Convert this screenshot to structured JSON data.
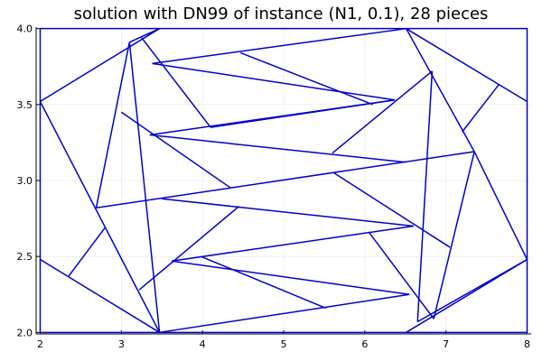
{
  "chart_data": {
    "type": "line",
    "title": "solution with DN99 of instance (N1, 0.1), 28 pieces",
    "xlabel": "",
    "ylabel": "",
    "xlim": [
      1.95,
      8.05
    ],
    "ylim": [
      1.99,
      4.01
    ],
    "x_ticks": [
      2,
      3,
      4,
      5,
      6,
      7,
      8
    ],
    "y_ticks": [
      2.0,
      2.5,
      3.0,
      3.5,
      4.0
    ],
    "x_tick_labels": [
      "2",
      "3",
      "4",
      "5",
      "6",
      "7",
      "8"
    ],
    "y_tick_labels": [
      "2.0",
      "2.5",
      "3.0",
      "3.5",
      "4.0"
    ],
    "grid": true,
    "legend": "none",
    "line_color": "#0000cd",
    "boundary": [
      [
        2,
        2
      ],
      [
        8,
        2
      ],
      [
        8,
        4
      ],
      [
        2,
        4
      ],
      [
        2,
        2
      ]
    ],
    "segments": [
      [
        [
          2,
          3.52
        ],
        [
          3.47,
          4
        ]
      ],
      [
        [
          2,
          3.52
        ],
        [
          3.47,
          2
        ]
      ],
      [
        [
          2,
          2.48
        ],
        [
          3.47,
          2
        ]
      ],
      [
        [
          2.35,
          2.37
        ],
        [
          2.8,
          2.69
        ]
      ],
      [
        [
          2.69,
          2.82
        ],
        [
          3.1,
          3.91
        ]
      ],
      [
        [
          3.1,
          3.91
        ],
        [
          3.47,
          2
        ]
      ],
      [
        [
          3.1,
          3.91
        ],
        [
          3.47,
          4
        ]
      ],
      [
        [
          3.25,
          3.94
        ],
        [
          4.1,
          3.35
        ]
      ],
      [
        [
          3.22,
          2.28
        ],
        [
          4.45,
          2.83
        ]
      ],
      [
        [
          3.47,
          2
        ],
        [
          6.55,
          2.25
        ]
      ],
      [
        [
          2.69,
          2.82
        ],
        [
          7.35,
          3.19
        ]
      ],
      [
        [
          3.38,
          3.77
        ],
        [
          6.51,
          4
        ]
      ],
      [
        [
          3.38,
          3.77
        ],
        [
          6.37,
          3.53
        ]
      ],
      [
        [
          4.47,
          3.84
        ],
        [
          6.1,
          3.5
        ]
      ],
      [
        [
          4.1,
          3.35
        ],
        [
          6.37,
          3.53
        ]
      ],
      [
        [
          3.35,
          3.3
        ],
        [
          6.37,
          3.53
        ]
      ],
      [
        [
          3.35,
          3.3
        ],
        [
          6.5,
          3.12
        ]
      ],
      [
        [
          3.0,
          3.45
        ],
        [
          4.35,
          2.95
        ]
      ],
      [
        [
          3.5,
          2.88
        ],
        [
          6.6,
          2.7
        ]
      ],
      [
        [
          3.62,
          2.47
        ],
        [
          6.6,
          2.7
        ]
      ],
      [
        [
          3.62,
          2.47
        ],
        [
          6.55,
          2.25
        ]
      ],
      [
        [
          3.98,
          2.5
        ],
        [
          5.52,
          2.16
        ]
      ],
      [
        [
          5.6,
          3.18
        ],
        [
          6.83,
          3.72
        ]
      ],
      [
        [
          5.62,
          3.05
        ],
        [
          7.05,
          2.56
        ]
      ],
      [
        [
          6.05,
          2.66
        ],
        [
          6.85,
          2.09
        ]
      ],
      [
        [
          6.51,
          4
        ],
        [
          8,
          3.52
        ]
      ],
      [
        [
          6.51,
          4
        ],
        [
          7.35,
          3.19
        ]
      ],
      [
        [
          6.83,
          3.72
        ],
        [
          6.65,
          2.07
        ]
      ],
      [
        [
          7.2,
          3.32
        ],
        [
          7.65,
          3.63
        ]
      ],
      [
        [
          7.35,
          3.19
        ],
        [
          6.85,
          2.09
        ]
      ],
      [
        [
          7.35,
          3.19
        ],
        [
          8,
          2.48
        ]
      ],
      [
        [
          6.65,
          2.07
        ],
        [
          8,
          2.48
        ]
      ],
      [
        [
          6.51,
          2
        ],
        [
          8,
          2.48
        ]
      ]
    ]
  }
}
